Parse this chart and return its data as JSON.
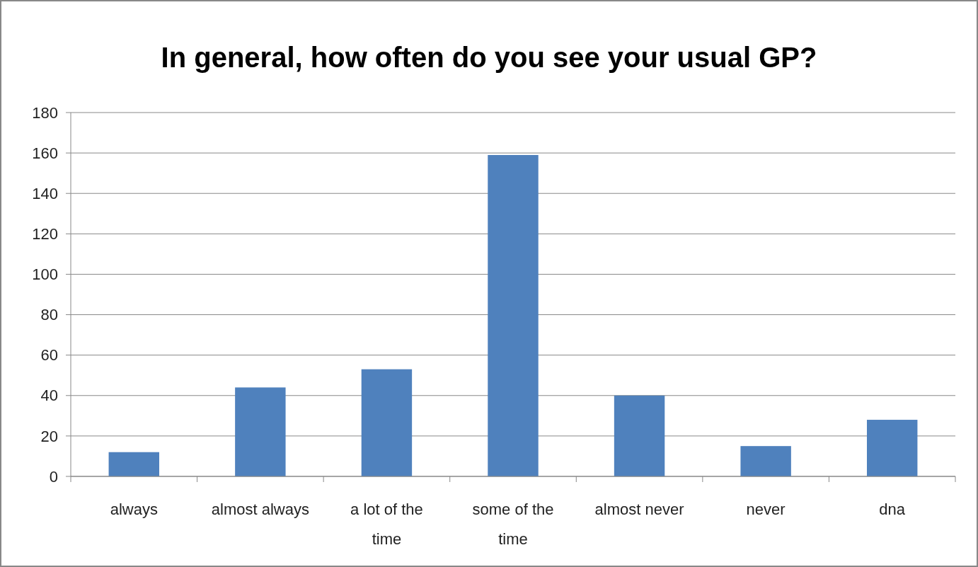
{
  "chart_data": {
    "type": "bar",
    "title": "In general, how often do you see your usual GP?",
    "categories": [
      "always",
      "almost always",
      "a lot of the time",
      "some of the time",
      "almost never",
      "never",
      "dna"
    ],
    "values": [
      12,
      44,
      53,
      159,
      40,
      15,
      28
    ],
    "color": "#4f81bd",
    "ylim": [
      0,
      180
    ],
    "yticks": [
      0,
      20,
      40,
      60,
      80,
      100,
      120,
      140,
      160,
      180
    ],
    "grid": "y"
  }
}
